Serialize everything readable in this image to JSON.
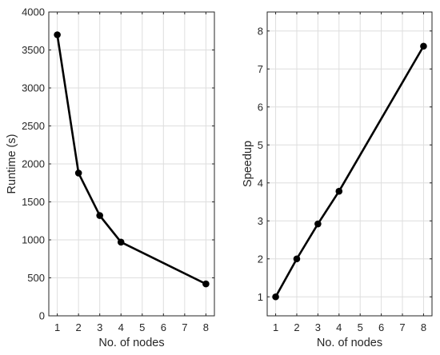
{
  "chart_data": [
    {
      "type": "line",
      "xlabel": "No. of nodes",
      "ylabel": "Runtime (s)",
      "x": [
        1,
        2,
        3,
        4,
        8
      ],
      "series": [
        {
          "values": [
            3700,
            1880,
            1320,
            970,
            420
          ]
        }
      ],
      "xlim": [
        0.6,
        8.4
      ],
      "ylim": [
        0,
        4000
      ],
      "xticks": [
        1,
        2,
        3,
        4,
        5,
        6,
        7,
        8
      ],
      "xtick_labels": [
        "1",
        "2",
        "3",
        "4",
        "5",
        "6",
        "7",
        "8"
      ],
      "yticks": [
        0,
        500,
        1000,
        1500,
        2000,
        2500,
        3000,
        3500,
        4000
      ],
      "ytick_labels": [
        "0",
        "500",
        "1000",
        "1500",
        "2000",
        "2500",
        "3000",
        "3500",
        "4000"
      ],
      "grid": true,
      "line_color": "#000000"
    },
    {
      "type": "line",
      "xlabel": "No. of nodes",
      "ylabel": "Speedup",
      "x": [
        1,
        2,
        3,
        4,
        8
      ],
      "series": [
        {
          "values": [
            1.0,
            2.0,
            2.92,
            3.78,
            7.6
          ]
        }
      ],
      "xlim": [
        0.6,
        8.4
      ],
      "ylim": [
        0.5,
        8.5
      ],
      "xticks": [
        1,
        2,
        3,
        4,
        5,
        6,
        7,
        8
      ],
      "xtick_labels": [
        "1",
        "2",
        "3",
        "4",
        "5",
        "6",
        "7",
        "8"
      ],
      "yticks": [
        1,
        2,
        3,
        4,
        5,
        6,
        7,
        8
      ],
      "ytick_labels": [
        "1",
        "2",
        "3",
        "4",
        "5",
        "6",
        "7",
        "8"
      ],
      "grid": true,
      "line_color": "#000000"
    }
  ]
}
